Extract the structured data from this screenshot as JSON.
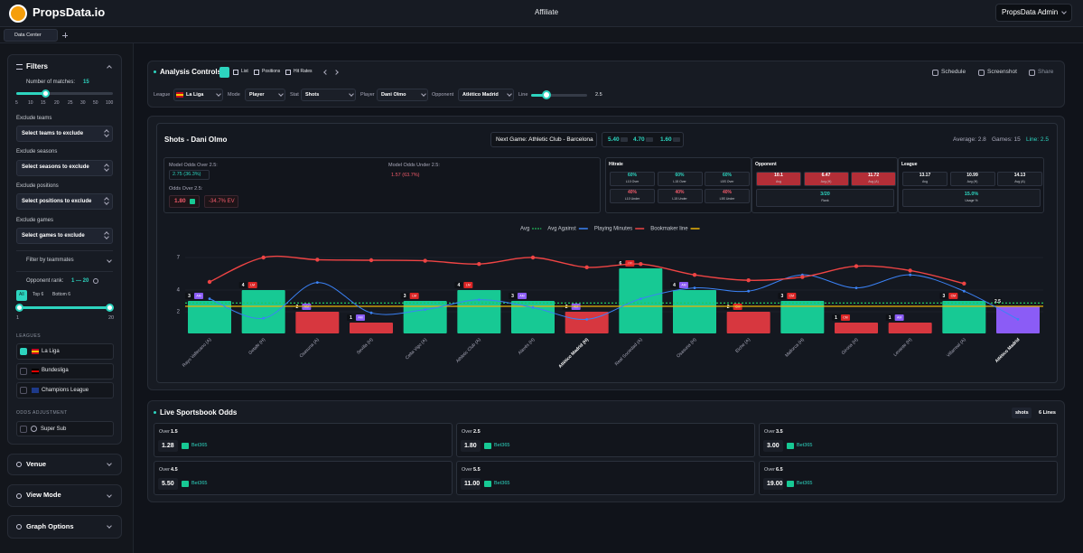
{
  "header": {
    "brand": "PropsData.io",
    "nav": "Affiliate",
    "user": "PropsData Admin"
  },
  "tabs": [
    "Data Center"
  ],
  "sidebar": {
    "filters_title": "Filters",
    "matches_label": "Number of matches:",
    "matches_value": "15",
    "slider_ticks": [
      "5",
      "10",
      "15",
      "20",
      "25",
      "30",
      "50",
      "100"
    ],
    "excludes": [
      {
        "label": "Exclude teams",
        "button": "Select teams to exclude"
      },
      {
        "label": "Exclude seasons",
        "button": "Select seasons to exclude"
      },
      {
        "label": "Exclude positions",
        "button": "Select positions to exclude"
      },
      {
        "label": "Exclude games",
        "button": "Select games to exclude"
      }
    ],
    "teammates": "Filter by teammates",
    "opp_rank_label": "Opponent rank:",
    "opp_rank_value": "1 — 20",
    "rank_tabs": [
      "All",
      "Top 6",
      "Bottom 6"
    ],
    "rank_min": "1",
    "rank_max": "20",
    "leagues_title": "LEAGUES",
    "leagues": [
      "La Liga",
      "Bundesliga",
      "Champions League"
    ],
    "odds_title": "ODDS ADJUSTMENT",
    "super_sub": "Super Sub",
    "panels": [
      "Venue",
      "View Mode",
      "Graph Options"
    ]
  },
  "controls": {
    "title": "Analysis Controls",
    "views": [
      "List",
      "Positions",
      "Hit Rates"
    ],
    "actions": [
      "Schedule",
      "Screenshot",
      "Share"
    ],
    "fields": [
      {
        "label": "League",
        "value": "La Liga"
      },
      {
        "label": "Mode",
        "value": "Player"
      },
      {
        "label": "Stat",
        "value": "Shots"
      },
      {
        "label": "Player",
        "value": "Dani Olmo"
      },
      {
        "label": "Opponent",
        "value": "Atlético Madrid"
      }
    ],
    "line_label": "Line",
    "line_value": "2.5"
  },
  "summary": {
    "title": "Shots - Dani Olmo",
    "next_game": "Next Game: Athletic Club - Barcelona",
    "odds": [
      "5.40",
      "4.70",
      "1.60"
    ],
    "average": "Average: 2.8",
    "games": "Games: 15",
    "line": "Line: 2.5"
  },
  "model": {
    "over_label": "Model Odds Over 2.5:",
    "over_value": "2.75 (36.3%)",
    "under_label": "Model Odds Under 2.5:",
    "under_value": "1.57 (63.7%)",
    "odds_over_label": "Odds Over 2.5:",
    "odds_over_value": "1.80",
    "ev": "-34.7% EV"
  },
  "hitrate": {
    "title": "Hitrate",
    "cells": [
      [
        "60%",
        "L10 Over"
      ],
      [
        "60%",
        "L15 Over"
      ],
      [
        "60%",
        "L5S Over"
      ],
      [
        "40%",
        "L10 Under"
      ],
      [
        "40%",
        "L15 Under"
      ],
      [
        "40%",
        "L5S Under"
      ]
    ]
  },
  "opponent": {
    "title": "Opponent",
    "cells": [
      [
        "10.1",
        "Avg"
      ],
      [
        "6.47",
        "Avg (H)"
      ],
      [
        "11.72",
        "Avg (A)"
      ]
    ],
    "rank_value": "3/20",
    "rank_label": "Rank"
  },
  "league": {
    "title": "League",
    "cells": [
      [
        "13.17",
        "Avg"
      ],
      [
        "10.99",
        "Avg (H)"
      ],
      [
        "14.13",
        "Avg (A)"
      ]
    ],
    "usage_value": "15.0%",
    "usage_label": "Usage %"
  },
  "chart_data": {
    "type": "bar",
    "categories": [
      "Rayo Vallecano (A)",
      "Getafe (H)",
      "Osasuna (A)",
      "Sevilla (H)",
      "Celta Vigo (A)",
      "Athletic Club (A)",
      "Alavés (H)",
      "Atlético Madrid (H)",
      "Real Sociedad (A)",
      "Osasuna (H)",
      "Elche (A)",
      "Mallorca (H)",
      "Girona (H)",
      "Levante (H)",
      "Villarreal (A)",
      "Atlético Madrid"
    ],
    "values": [
      3,
      4,
      2,
      1,
      3,
      4,
      3,
      2,
      6,
      4,
      2,
      3,
      1,
      1,
      3,
      2.5
    ],
    "colors": [
      "#17c994",
      "#17c994",
      "#d7373f",
      "#d7373f",
      "#17c994",
      "#17c994",
      "#17c994",
      "#d7373f",
      "#17c994",
      "#17c994",
      "#d7373f",
      "#17c994",
      "#d7373f",
      "#d7373f",
      "#17c994",
      "#8b5cf6"
    ],
    "positions": [
      "AM",
      "LM",
      "AM",
      "AM",
      "LM",
      "LM",
      "AM",
      "AM",
      "LM",
      "AM",
      "CM",
      "CM",
      "CM",
      "AM",
      "CM",
      null
    ],
    "position_colors": {
      "AM": "#8b5cf6",
      "LM": "#dc2626",
      "CM": "#dc2626"
    },
    "series": [
      {
        "name": "Avg Against",
        "color": "#3b82f6",
        "values": [
          3.2,
          1.4,
          4.7,
          1.9,
          2.2,
          3.1,
          2.4,
          1.3,
          3.2,
          4.2,
          3.9,
          5.4,
          4.2,
          5.4,
          3.9,
          1.3
        ]
      },
      {
        "name": "Playing Minutes",
        "color": "#ef4444",
        "values": [
          4.75,
          7,
          6.8,
          6.75,
          6.7,
          6.4,
          7,
          6.1,
          6.4,
          5.4,
          4.9,
          5.2,
          6.2,
          5.8,
          4.6,
          null
        ]
      }
    ],
    "reference_lines": [
      {
        "name": "Avg",
        "color": "#22c55e",
        "value": 2.8
      },
      {
        "name": "Bookmaker line",
        "color": "#eab308",
        "value": 2.5
      }
    ],
    "ylim": [
      0,
      8
    ],
    "yticks": [
      2,
      4,
      7
    ],
    "grid": true
  },
  "odds": {
    "title": "Live Sportsbook Odds",
    "tag": "shots",
    "lines": "6 Lines",
    "markets": [
      {
        "over": "Over",
        "line": "1.5",
        "price": "1.28",
        "book": "Bet365"
      },
      {
        "over": "Over",
        "line": "2.5",
        "price": "1.80",
        "book": "Bet365"
      },
      {
        "over": "Over",
        "line": "3.5",
        "price": "3.00",
        "book": "Bet365"
      },
      {
        "over": "Over",
        "line": "4.5",
        "price": "5.50",
        "book": "Bet365"
      },
      {
        "over": "Over",
        "line": "5.5",
        "price": "11.00",
        "book": "Bet365"
      },
      {
        "over": "Over",
        "line": "6.5",
        "price": "19.00",
        "book": "Bet365"
      }
    ]
  }
}
